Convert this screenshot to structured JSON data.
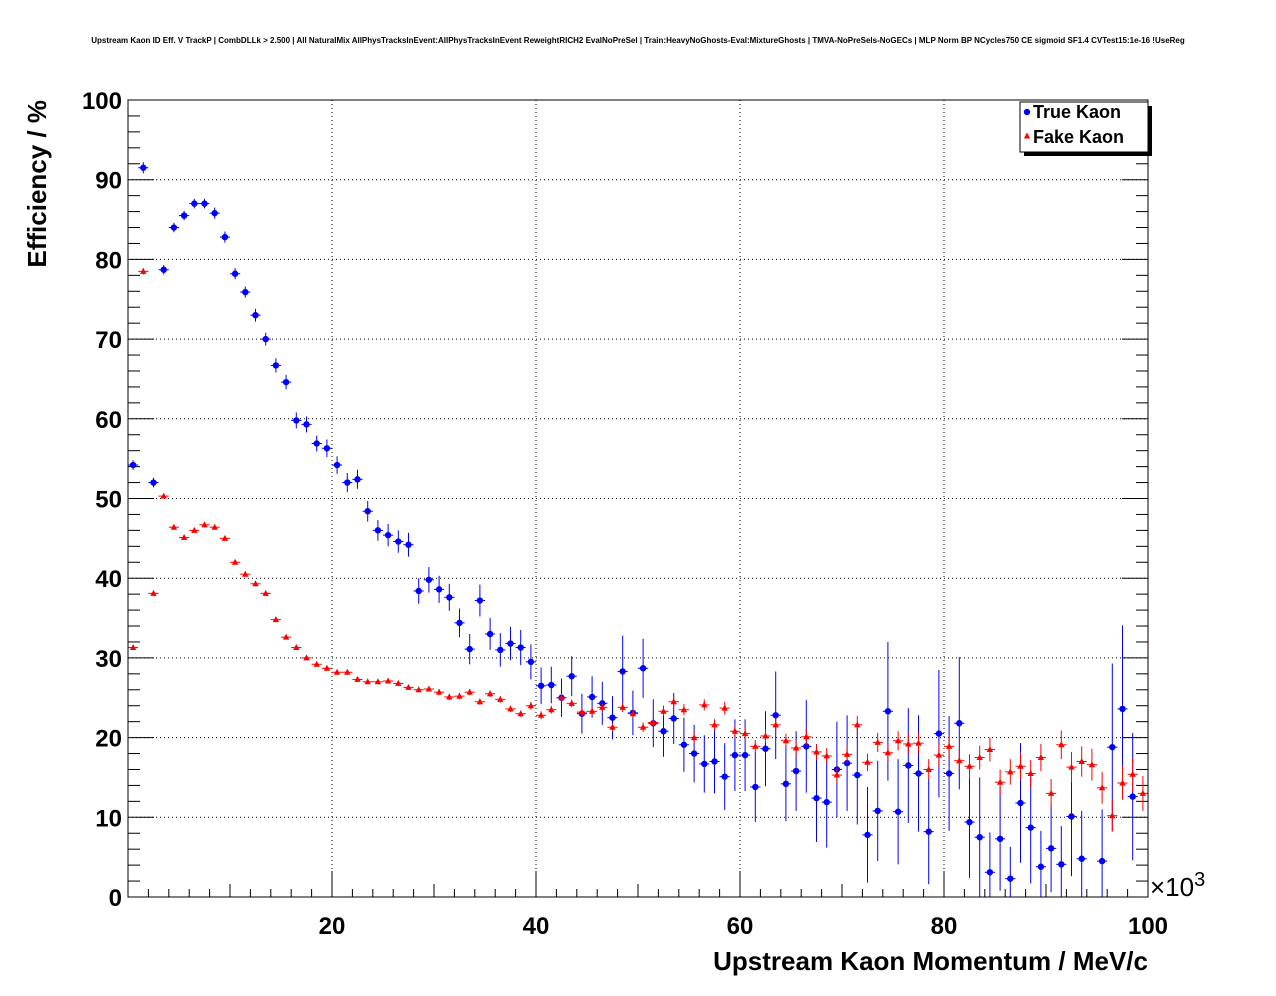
{
  "chart_data": {
    "type": "scatter",
    "title": "Upstream Kaon ID Eff. V TrackP | CombDLLk > 2.500 | All NaturalMix AllPhysTracksInEvent:AllPhysTracksInEvent ReweightRICH2 EvalNoPreSel | Train:HeavyNoGhosts-Eval:MixtureGhosts | TMVA-NoPreSels-NoGECs | MLP Norm BP NCycles750 CE sigmoid SF1.4 CVTest15:1e-16 !UseReg",
    "xlabel": "Upstream Kaon Momentum / MeV/c",
    "ylabel": "Efficiency / %",
    "x_multiplier_label": "×10",
    "x_multiplier_exp": "3",
    "xlim": [
      0,
      100
    ],
    "ylim": [
      0,
      100
    ],
    "x_ticks": [
      20,
      40,
      60,
      80,
      100
    ],
    "y_ticks": [
      0,
      10,
      20,
      30,
      40,
      50,
      60,
      70,
      80,
      90,
      100
    ],
    "grid": true,
    "legend_position": "top-right",
    "x": [
      0.5,
      1.5,
      2.5,
      3.5,
      4.5,
      5.5,
      6.5,
      7.5,
      8.5,
      9.5,
      10.5,
      11.5,
      12.5,
      13.5,
      14.5,
      15.5,
      16.5,
      17.5,
      18.5,
      19.5,
      20.5,
      21.5,
      22.5,
      23.5,
      24.5,
      25.5,
      26.5,
      27.5,
      28.5,
      29.5,
      30.5,
      31.5,
      32.5,
      33.5,
      34.5,
      35.5,
      36.5,
      37.5,
      38.5,
      39.5,
      40.5,
      41.5,
      42.5,
      43.5,
      44.5,
      45.5,
      46.5,
      47.5,
      48.5,
      49.5,
      50.5,
      51.5,
      52.5,
      53.5,
      54.5,
      55.5,
      56.5,
      57.5,
      58.5,
      59.5,
      60.5,
      61.5,
      62.5,
      63.5,
      64.5,
      65.5,
      66.5,
      67.5,
      68.5,
      69.5,
      70.5,
      71.5,
      72.5,
      73.5,
      74.5,
      75.5,
      76.5,
      77.5,
      78.5,
      79.5,
      80.5,
      81.5,
      82.5,
      83.5,
      84.5,
      85.5,
      86.5,
      87.5,
      88.5,
      89.5,
      90.5,
      91.5,
      92.5,
      93.5,
      94.5,
      95.5,
      96.5,
      97.5,
      98.5,
      99.5
    ],
    "series": [
      {
        "name": "True Kaon",
        "color": "#0000ff",
        "marker": "circle",
        "y": [
          54.2,
          91.5,
          52.0,
          78.7,
          84.0,
          85.5,
          87.0,
          87.0,
          85.8,
          82.8,
          78.2,
          75.9,
          73.0,
          70.0,
          66.7,
          64.6,
          59.8,
          59.3,
          56.9,
          56.3,
          54.2,
          52.0,
          52.4,
          48.4,
          46.0,
          45.4,
          44.6,
          44.2,
          38.4,
          39.8,
          38.6,
          37.6,
          34.4,
          31.1,
          37.2,
          33.0,
          31.0,
          31.8,
          31.3,
          29.5,
          26.5,
          26.6,
          25.0,
          27.7,
          23.0,
          25.1,
          24.3,
          22.5,
          28.3,
          23.1,
          28.7,
          21.8,
          20.8,
          22.4,
          19.1,
          18.0,
          16.7,
          17.0,
          15.1,
          17.8,
          17.8,
          13.8,
          18.6,
          22.8,
          14.2,
          15.8,
          18.9,
          12.4,
          11.9,
          16.0,
          16.8,
          15.3,
          7.8,
          10.8,
          23.3,
          10.7,
          16.5,
          15.5,
          8.2,
          20.5,
          15.5,
          21.8,
          9.4,
          7.5,
          3.1,
          7.3,
          2.3,
          11.8,
          8.7,
          3.8,
          6.1,
          4.1,
          10.1,
          4.8,
          0,
          4.5,
          18.8,
          23.6,
          12.6,
          0
        ],
        "yerr": [
          0.6,
          0.7,
          0.6,
          0.6,
          0.6,
          0.6,
          0.6,
          0.6,
          0.7,
          0.7,
          0.7,
          0.7,
          0.8,
          0.8,
          0.9,
          0.9,
          1.0,
          1.0,
          1.0,
          1.1,
          1.1,
          1.2,
          1.2,
          1.3,
          1.3,
          1.4,
          1.4,
          1.5,
          1.6,
          1.6,
          1.7,
          1.7,
          1.8,
          1.9,
          2.0,
          2.0,
          2.1,
          2.1,
          2.2,
          2.2,
          2.3,
          2.3,
          2.4,
          2.5,
          2.5,
          2.6,
          2.7,
          2.7,
          4.5,
          2.8,
          3.7,
          3.0,
          3.2,
          3.2,
          3.4,
          3.6,
          3.6,
          4.0,
          4.2,
          4.5,
          4.5,
          4.4,
          4.7,
          5.5,
          4.7,
          5.0,
          5.8,
          5.5,
          5.7,
          6.0,
          6.0,
          6.2,
          6.0,
          6.3,
          8.7,
          6.6,
          7.2,
          7.3,
          6.6,
          8.0,
          7.2,
          8.3,
          7.0,
          7.5,
          5.0,
          6.5,
          4.0,
          7.5,
          7.0,
          4.5,
          5.5,
          4.8,
          7.5,
          6.0,
          0,
          6.5,
          10.5,
          10.5,
          8.0,
          0
        ]
      },
      {
        "name": "Fake Kaon",
        "color": "#ff0000",
        "marker": "triangle",
        "y": [
          31.3,
          78.5,
          38.1,
          50.3,
          46.4,
          45.1,
          46.0,
          46.7,
          46.4,
          45.0,
          42.0,
          40.5,
          39.3,
          38.1,
          34.8,
          32.6,
          31.3,
          30.0,
          29.2,
          28.7,
          28.2,
          28.2,
          27.3,
          27.0,
          27.0,
          27.1,
          26.8,
          26.3,
          26.0,
          26.1,
          25.7,
          25.1,
          25.2,
          25.7,
          24.5,
          25.5,
          24.8,
          23.6,
          23.0,
          24.0,
          22.8,
          23.5,
          25.0,
          24.3,
          23.2,
          23.3,
          23.8,
          21.3,
          23.8,
          23.0,
          21.3,
          21.9,
          23.3,
          24.5,
          23.5,
          20.0,
          24.1,
          21.6,
          23.7,
          20.8,
          20.5,
          18.9,
          20.2,
          21.6,
          19.6,
          18.7,
          20.1,
          18.2,
          17.7,
          15.3,
          17.9,
          21.6,
          16.9,
          19.4,
          18.1,
          19.6,
          19.2,
          19.3,
          16.0,
          17.8,
          18.9,
          17.1,
          16.4,
          17.5,
          18.5,
          14.4,
          15.7,
          16.4,
          15.5,
          17.5,
          13.0,
          19.1,
          16.3,
          17.0,
          16.6,
          13.7,
          10.2,
          14.3,
          15.4,
          13.0
        ],
        "yerr": [
          0.3,
          0.4,
          0.3,
          0.3,
          0.3,
          0.3,
          0.3,
          0.3,
          0.3,
          0.3,
          0.3,
          0.3,
          0.3,
          0.3,
          0.3,
          0.3,
          0.3,
          0.3,
          0.3,
          0.3,
          0.3,
          0.3,
          0.3,
          0.3,
          0.3,
          0.3,
          0.3,
          0.3,
          0.3,
          0.3,
          0.4,
          0.4,
          0.4,
          0.4,
          0.4,
          0.4,
          0.4,
          0.4,
          0.4,
          0.5,
          0.5,
          0.5,
          0.5,
          0.5,
          0.5,
          0.5,
          0.5,
          0.5,
          0.6,
          0.6,
          0.6,
          0.6,
          0.6,
          0.7,
          0.7,
          0.7,
          0.7,
          0.7,
          0.8,
          0.8,
          0.8,
          0.8,
          0.9,
          0.9,
          0.9,
          0.9,
          1.0,
          1.0,
          1.0,
          1.0,
          1.1,
          1.1,
          1.1,
          1.2,
          1.2,
          1.2,
          1.3,
          1.3,
          1.3,
          1.4,
          1.4,
          1.4,
          1.5,
          1.5,
          1.5,
          1.6,
          1.6,
          1.7,
          1.7,
          1.7,
          1.8,
          1.8,
          1.9,
          1.9,
          2.0,
          2.0,
          2.0,
          2.1,
          2.1,
          2.2
        ]
      }
    ]
  }
}
